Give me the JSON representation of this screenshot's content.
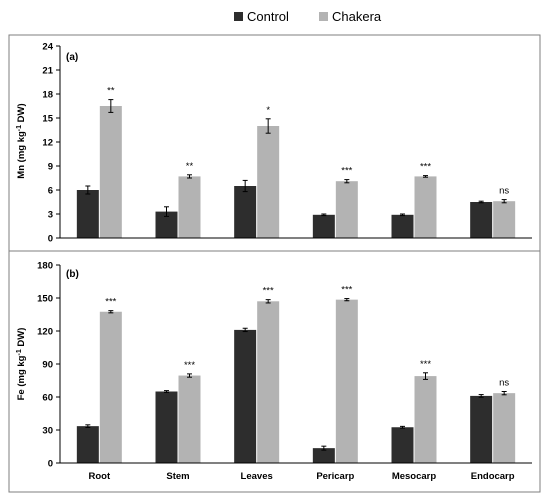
{
  "chart_data": [
    {
      "type": "bar",
      "panel_label": "(a)",
      "ylabel_main": "Mn (mg kg",
      "ylabel_sup": "-1",
      "ylabel_tail": " DW)",
      "categories": [
        "Root",
        "Stem",
        "Leaves",
        "Pericarp",
        "Mesocarp",
        "Endocarp"
      ],
      "ylim": [
        0,
        24
      ],
      "yticks": [
        0,
        3,
        6,
        9,
        12,
        15,
        18,
        21,
        24
      ],
      "series": [
        {
          "name": "Control",
          "values": [
            6.0,
            3.3,
            6.5,
            2.9,
            2.9,
            4.5
          ],
          "errors": [
            0.5,
            0.6,
            0.7,
            0.1,
            0.1,
            0.1
          ]
        },
        {
          "name": "Chakera",
          "values": [
            16.5,
            7.7,
            14.0,
            7.1,
            7.7,
            4.6
          ],
          "errors": [
            0.8,
            0.2,
            0.9,
            0.2,
            0.1,
            0.2
          ]
        }
      ],
      "significance": [
        "**",
        "**",
        "*",
        "***",
        "***",
        "ns"
      ]
    },
    {
      "type": "bar",
      "panel_label": "(b)",
      "ylabel_main": "Fe (mg kg",
      "ylabel_sup": "-1",
      "ylabel_tail": " DW)",
      "categories": [
        "Root",
        "Stem",
        "Leaves",
        "Pericarp",
        "Mesocarp",
        "Endocarp"
      ],
      "ylim": [
        0,
        180
      ],
      "yticks": [
        0,
        30,
        60,
        90,
        120,
        150,
        180
      ],
      "series": [
        {
          "name": "Control",
          "values": [
            33.5,
            65.0,
            121.0,
            13.5,
            32.5,
            61.0
          ],
          "errors": [
            1.2,
            0.8,
            1.5,
            1.8,
            0.8,
            1.2
          ]
        },
        {
          "name": "Chakera",
          "values": [
            137.5,
            79.5,
            147.0,
            148.5,
            79.0,
            63.5
          ],
          "errors": [
            1.0,
            1.5,
            1.5,
            1.0,
            3.0,
            1.5
          ]
        }
      ],
      "significance": [
        "***",
        "***",
        "***",
        "***",
        "***",
        "ns"
      ]
    }
  ],
  "legend": {
    "items": [
      {
        "label": "Control",
        "color": "#2d2d2d"
      },
      {
        "label": "Chakera",
        "color": "#b3b3b3"
      }
    ]
  }
}
